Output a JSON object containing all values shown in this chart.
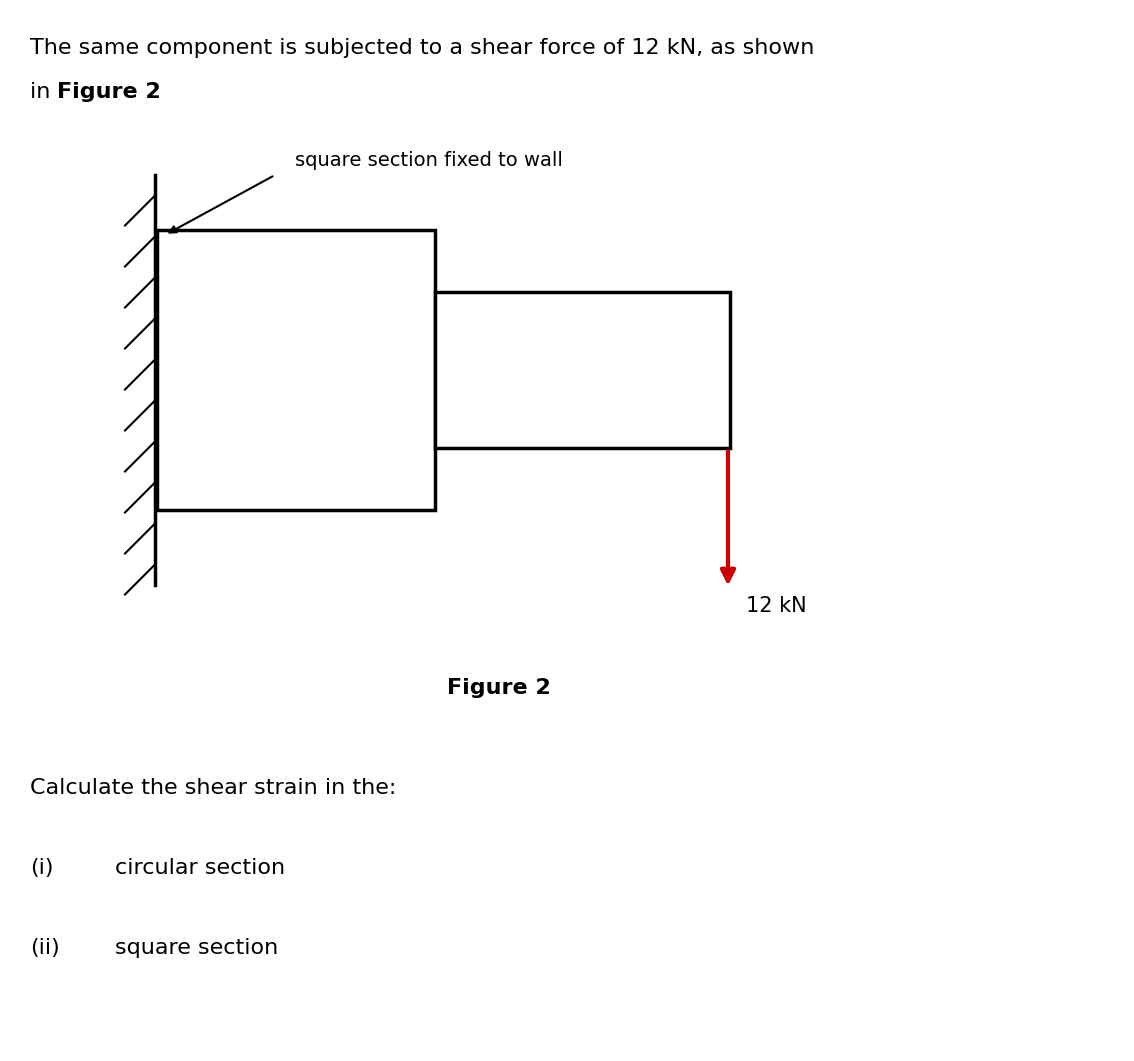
{
  "bg_color": "#ffffff",
  "box_color": "#000000",
  "arrow_color": "#cc0000",
  "text_color": "#000000",
  "label_square_wall": "square section fixed to wall",
  "figure_label": "Figure 2",
  "force_label": "12 kN",
  "calc_text": "Calculate the shear strain in the:",
  "item_i_num": "(i)",
  "item_i_text": "circular section",
  "item_ii_num": "(ii)",
  "item_ii_text": "square section",
  "line1": "The same component is subjected to a shear force of 12 kN, as shown",
  "line2_normal": "in ",
  "line2_bold": "Figure 2",
  "line2_end": ".",
  "fontsize_body": 16,
  "fontsize_label": 14,
  "fontsize_fig": 16
}
